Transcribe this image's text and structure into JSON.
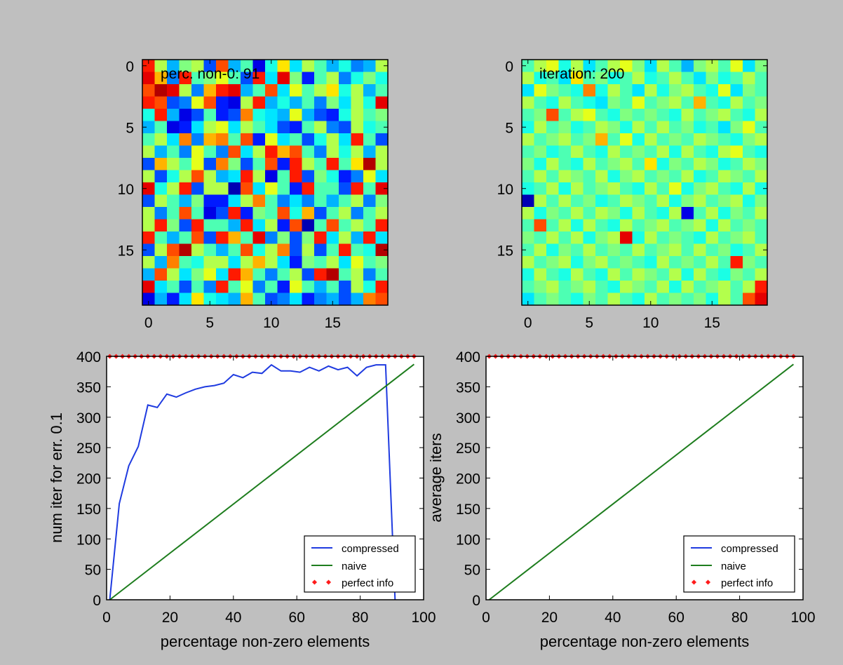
{
  "figure": {
    "background": "#bfbfbf",
    "colormap": "jet"
  },
  "chart_data": [
    {
      "id": "heatmap-left",
      "type": "heatmap",
      "annotation": "perc. non-0: 91",
      "rows": 20,
      "cols": 20,
      "xticks": [
        0,
        5,
        10,
        15
      ],
      "yticks": [
        0,
        5,
        10,
        15
      ],
      "value_range": [
        0,
        1
      ],
      "cells": [
        [
          0.85,
          0.55,
          0.3,
          0.5,
          0.55,
          0.2,
          0.8,
          0.3,
          0.45,
          0.1,
          0.4,
          0.65,
          0.35,
          0.55,
          0.45,
          0.3,
          0.4,
          0.25,
          0.3,
          0.55
        ],
        [
          0.9,
          0.7,
          0.25,
          0.85,
          0.45,
          0.5,
          0.6,
          0.45,
          0.2,
          0.85,
          0.35,
          0.9,
          0.5,
          0.15,
          0.45,
          0.55,
          0.25,
          0.4,
          0.5,
          0.4
        ],
        [
          0.8,
          0.95,
          0.9,
          0.55,
          0.25,
          0.7,
          0.85,
          0.9,
          0.3,
          0.45,
          0.8,
          0.35,
          0.6,
          0.45,
          0.55,
          0.65,
          0.4,
          0.55,
          0.3,
          0.45
        ],
        [
          0.85,
          0.8,
          0.2,
          0.25,
          0.6,
          0.8,
          0.15,
          0.1,
          0.55,
          0.85,
          0.3,
          0.4,
          0.3,
          0.45,
          0.25,
          0.5,
          0.35,
          0.55,
          0.4,
          0.9
        ],
        [
          0.4,
          0.85,
          0.3,
          0.1,
          0.2,
          0.45,
          0.15,
          0.2,
          0.75,
          0.4,
          0.35,
          0.3,
          0.6,
          0.3,
          0.2,
          0.15,
          0.4,
          0.55,
          0.45,
          0.5
        ],
        [
          0.3,
          0.45,
          0.1,
          0.15,
          0.35,
          0.55,
          0.6,
          0.35,
          0.55,
          0.45,
          0.35,
          0.2,
          0.15,
          0.45,
          0.55,
          0.25,
          0.2,
          0.55,
          0.4,
          0.45
        ],
        [
          0.45,
          0.55,
          0.35,
          0.75,
          0.25,
          0.7,
          0.75,
          0.45,
          0.8,
          0.15,
          0.6,
          0.35,
          0.45,
          0.2,
          0.4,
          0.55,
          0.35,
          0.85,
          0.45,
          0.2
        ],
        [
          0.55,
          0.3,
          0.45,
          0.25,
          0.6,
          0.45,
          0.25,
          0.8,
          0.35,
          0.55,
          0.85,
          0.7,
          0.8,
          0.45,
          0.25,
          0.55,
          0.4,
          0.55,
          0.3,
          0.55
        ],
        [
          0.2,
          0.7,
          0.55,
          0.45,
          0.6,
          0.2,
          0.75,
          0.5,
          0.2,
          0.45,
          0.8,
          0.15,
          0.85,
          0.55,
          0.45,
          0.85,
          0.45,
          0.65,
          0.95,
          0.55
        ],
        [
          0.55,
          0.2,
          0.4,
          0.55,
          0.8,
          0.55,
          0.3,
          0.35,
          0.85,
          0.55,
          0.1,
          0.45,
          0.85,
          0.2,
          0.5,
          0.4,
          0.15,
          0.25,
          0.6,
          0.35
        ],
        [
          0.9,
          0.4,
          0.55,
          0.85,
          0.2,
          0.55,
          0.55,
          0.05,
          0.8,
          0.35,
          0.6,
          0.45,
          0.15,
          0.85,
          0.45,
          0.45,
          0.2,
          0.85,
          0.45,
          0.9
        ],
        [
          0.2,
          0.55,
          0.45,
          0.3,
          0.5,
          0.15,
          0.15,
          0.35,
          0.55,
          0.75,
          0.45,
          0.25,
          0.35,
          0.25,
          0.45,
          0.3,
          0.45,
          0.55,
          0.25,
          0.5
        ],
        [
          0.55,
          0.25,
          0.45,
          0.8,
          0.45,
          0.1,
          0.2,
          0.85,
          0.15,
          0.5,
          0.45,
          0.8,
          0.4,
          0.7,
          0.2,
          0.45,
          0.55,
          0.25,
          0.45,
          0.55
        ],
        [
          0.55,
          0.85,
          0.5,
          0.2,
          0.85,
          0.45,
          0.45,
          0.3,
          0.85,
          0.35,
          0.55,
          0.15,
          0.8,
          0.05,
          0.45,
          0.8,
          0.45,
          0.55,
          0.45,
          0.85
        ],
        [
          0.85,
          0.45,
          0.3,
          0.45,
          0.8,
          0.2,
          0.85,
          0.7,
          0.45,
          0.9,
          0.25,
          0.5,
          0.2,
          0.5,
          0.85,
          0.35,
          0.55,
          0.3,
          0.85,
          0.35
        ],
        [
          0.2,
          0.55,
          0.8,
          0.95,
          0.55,
          0.45,
          0.3,
          0.45,
          0.8,
          0.4,
          0.55,
          0.75,
          0.2,
          0.55,
          0.2,
          0.45,
          0.85,
          0.45,
          0.4,
          0.95
        ],
        [
          0.55,
          0.3,
          0.75,
          0.45,
          0.4,
          0.55,
          0.55,
          0.35,
          0.55,
          0.7,
          0.55,
          0.35,
          0.15,
          0.5,
          0.45,
          0.55,
          0.35,
          0.6,
          0.45,
          0.5
        ],
        [
          0.3,
          0.8,
          0.55,
          0.35,
          0.5,
          0.6,
          0.35,
          0.85,
          0.7,
          0.45,
          0.25,
          0.45,
          0.55,
          0.2,
          0.85,
          0.95,
          0.45,
          0.55,
          0.25,
          0.45
        ],
        [
          0.9,
          0.35,
          0.45,
          0.2,
          0.45,
          0.25,
          0.85,
          0.45,
          0.6,
          0.25,
          0.45,
          0.15,
          0.6,
          0.45,
          0.3,
          0.45,
          0.2,
          0.55,
          0.4,
          0.85
        ],
        [
          0.1,
          0.3,
          0.15,
          0.35,
          0.65,
          0.4,
          0.35,
          0.3,
          0.7,
          0.45,
          0.2,
          0.25,
          0.35,
          0.15,
          0.25,
          0.3,
          0.2,
          0.3,
          0.75,
          0.8
        ]
      ]
    },
    {
      "id": "heatmap-right",
      "type": "heatmap",
      "annotation": "iteration: 200",
      "rows": 20,
      "cols": 20,
      "xticks": [
        0,
        5,
        10,
        15
      ],
      "yticks": [
        0,
        5,
        10,
        15
      ],
      "value_range": [
        0,
        1
      ],
      "cells": [
        [
          0.45,
          0.55,
          0.6,
          0.4,
          0.55,
          0.35,
          0.45,
          0.55,
          0.6,
          0.5,
          0.35,
          0.55,
          0.45,
          0.3,
          0.5,
          0.55,
          0.45,
          0.6,
          0.35,
          0.5
        ],
        [
          0.55,
          0.4,
          0.45,
          0.35,
          0.65,
          0.45,
          0.5,
          0.4,
          0.45,
          0.55,
          0.4,
          0.45,
          0.55,
          0.45,
          0.35,
          0.5,
          0.4,
          0.45,
          0.55,
          0.45
        ],
        [
          0.35,
          0.6,
          0.5,
          0.45,
          0.4,
          0.75,
          0.4,
          0.55,
          0.45,
          0.35,
          0.55,
          0.4,
          0.5,
          0.55,
          0.45,
          0.4,
          0.6,
          0.35,
          0.5,
          0.45
        ],
        [
          0.55,
          0.45,
          0.4,
          0.55,
          0.45,
          0.4,
          0.35,
          0.5,
          0.45,
          0.6,
          0.45,
          0.5,
          0.55,
          0.45,
          0.7,
          0.45,
          0.4,
          0.55,
          0.45,
          0.5
        ],
        [
          0.45,
          0.5,
          0.8,
          0.45,
          0.55,
          0.6,
          0.45,
          0.4,
          0.5,
          0.45,
          0.5,
          0.45,
          0.4,
          0.55,
          0.45,
          0.5,
          0.55,
          0.45,
          0.4,
          0.55
        ],
        [
          0.4,
          0.55,
          0.45,
          0.5,
          0.4,
          0.45,
          0.55,
          0.5,
          0.4,
          0.55,
          0.45,
          0.55,
          0.45,
          0.5,
          0.4,
          0.45,
          0.35,
          0.5,
          0.6,
          0.45
        ],
        [
          0.55,
          0.45,
          0.5,
          0.55,
          0.45,
          0.5,
          0.7,
          0.45,
          0.6,
          0.4,
          0.55,
          0.45,
          0.5,
          0.45,
          0.55,
          0.5,
          0.45,
          0.4,
          0.5,
          0.55
        ],
        [
          0.45,
          0.5,
          0.4,
          0.45,
          0.55,
          0.45,
          0.4,
          0.55,
          0.45,
          0.5,
          0.45,
          0.55,
          0.4,
          0.55,
          0.45,
          0.4,
          0.55,
          0.6,
          0.45,
          0.4
        ],
        [
          0.5,
          0.4,
          0.55,
          0.45,
          0.4,
          0.55,
          0.45,
          0.5,
          0.55,
          0.45,
          0.65,
          0.4,
          0.5,
          0.45,
          0.55,
          0.5,
          0.4,
          0.45,
          0.55,
          0.5
        ],
        [
          0.45,
          0.55,
          0.45,
          0.55,
          0.5,
          0.45,
          0.55,
          0.4,
          0.5,
          0.55,
          0.45,
          0.5,
          0.45,
          0.55,
          0.4,
          0.45,
          0.55,
          0.5,
          0.45,
          0.55
        ],
        [
          0.4,
          0.45,
          0.55,
          0.4,
          0.55,
          0.45,
          0.5,
          0.55,
          0.45,
          0.4,
          0.55,
          0.45,
          0.6,
          0.4,
          0.5,
          0.55,
          0.45,
          0.4,
          0.55,
          0.4
        ],
        [
          0.05,
          0.55,
          0.45,
          0.55,
          0.45,
          0.5,
          0.4,
          0.45,
          0.55,
          0.5,
          0.45,
          0.55,
          0.4,
          0.5,
          0.55,
          0.45,
          0.5,
          0.55,
          0.4,
          0.5
        ],
        [
          0.55,
          0.4,
          0.5,
          0.45,
          0.55,
          0.45,
          0.55,
          0.5,
          0.4,
          0.55,
          0.45,
          0.4,
          0.55,
          0.1,
          0.45,
          0.55,
          0.4,
          0.5,
          0.45,
          0.55
        ],
        [
          0.45,
          0.8,
          0.45,
          0.55,
          0.4,
          0.55,
          0.45,
          0.4,
          0.55,
          0.45,
          0.5,
          0.55,
          0.45,
          0.5,
          0.55,
          0.4,
          0.55,
          0.45,
          0.5,
          0.45
        ],
        [
          0.5,
          0.45,
          0.55,
          0.45,
          0.55,
          0.4,
          0.5,
          0.55,
          0.9,
          0.4,
          0.55,
          0.45,
          0.5,
          0.45,
          0.4,
          0.55,
          0.45,
          0.5,
          0.55,
          0.45
        ],
        [
          0.45,
          0.55,
          0.4,
          0.5,
          0.45,
          0.55,
          0.45,
          0.5,
          0.45,
          0.55,
          0.45,
          0.5,
          0.55,
          0.45,
          0.55,
          0.45,
          0.5,
          0.4,
          0.45,
          0.55
        ],
        [
          0.55,
          0.45,
          0.5,
          0.55,
          0.4,
          0.5,
          0.55,
          0.45,
          0.5,
          0.45,
          0.4,
          0.55,
          0.45,
          0.5,
          0.45,
          0.55,
          0.45,
          0.85,
          0.5,
          0.45
        ],
        [
          0.4,
          0.55,
          0.45,
          0.4,
          0.55,
          0.45,
          0.4,
          0.55,
          0.45,
          0.55,
          0.5,
          0.45,
          0.55,
          0.4,
          0.55,
          0.45,
          0.4,
          0.5,
          0.45,
          0.55
        ],
        [
          0.45,
          0.5,
          0.55,
          0.45,
          0.5,
          0.55,
          0.45,
          0.4,
          0.55,
          0.5,
          0.45,
          0.55,
          0.4,
          0.55,
          0.45,
          0.5,
          0.55,
          0.45,
          0.55,
          0.85
        ],
        [
          0.35,
          0.45,
          0.5,
          0.45,
          0.4,
          0.5,
          0.45,
          0.55,
          0.45,
          0.4,
          0.55,
          0.45,
          0.5,
          0.45,
          0.5,
          0.4,
          0.55,
          0.45,
          0.8,
          0.9
        ]
      ]
    },
    {
      "id": "line-left",
      "type": "line",
      "xlabel": "percentage non-zero elements",
      "ylabel": "num iter for err. 0.1",
      "xlim": [
        0,
        100
      ],
      "ylim": [
        0,
        400
      ],
      "xticks": [
        0,
        20,
        40,
        60,
        80,
        100
      ],
      "yticks": [
        0,
        50,
        100,
        150,
        200,
        250,
        300,
        350,
        400
      ],
      "legend": {
        "position": "lower-right"
      },
      "series": [
        {
          "name": "compressed",
          "style": "line",
          "color": "#1f3be0",
          "x": [
            1,
            4,
            7,
            10,
            13,
            16,
            19,
            22,
            25,
            28,
            31,
            34,
            37,
            40,
            43,
            46,
            49,
            52,
            55,
            58,
            61,
            64,
            67,
            70,
            73,
            76,
            79,
            82,
            85,
            88,
            91
          ],
          "y": [
            0,
            158,
            220,
            252,
            320,
            316,
            338,
            333,
            340,
            346,
            350,
            352,
            356,
            370,
            365,
            374,
            372,
            386,
            376,
            376,
            374,
            382,
            376,
            384,
            378,
            382,
            368,
            382,
            386,
            386,
            0
          ]
        },
        {
          "name": "naive",
          "style": "line",
          "color": "#1e7d1e",
          "x": [
            1,
            97
          ],
          "y": [
            0,
            387
          ]
        },
        {
          "name": "perfect info",
          "style": "markers",
          "color": "#ff1a1a",
          "x": [
            1,
            3,
            5,
            7,
            9,
            11,
            13,
            15,
            17,
            19,
            21,
            23,
            25,
            27,
            29,
            31,
            33,
            35,
            37,
            39,
            41,
            43,
            45,
            47,
            49,
            51,
            53,
            55,
            57,
            59,
            61,
            63,
            65,
            67,
            69,
            71,
            73,
            75,
            77,
            79,
            81,
            83,
            85,
            87,
            89,
            91,
            93,
            95,
            97
          ],
          "y": 400
        }
      ]
    },
    {
      "id": "line-right",
      "type": "line",
      "xlabel": "percentage non-zero elements",
      "ylabel": "average iters",
      "xlim": [
        0,
        100
      ],
      "ylim": [
        0,
        400
      ],
      "xticks": [
        0,
        20,
        40,
        60,
        80,
        100
      ],
      "yticks": [
        0,
        50,
        100,
        150,
        200,
        250,
        300,
        350,
        400
      ],
      "legend": {
        "position": "lower-right"
      },
      "series": [
        {
          "name": "compressed",
          "style": "line",
          "color": "#1f3be0",
          "x": [],
          "y": []
        },
        {
          "name": "naive",
          "style": "line",
          "color": "#1e7d1e",
          "x": [
            1,
            97
          ],
          "y": [
            0,
            387
          ]
        },
        {
          "name": "perfect info",
          "style": "markers",
          "color": "#ff1a1a",
          "x": [
            1,
            3,
            5,
            7,
            9,
            11,
            13,
            15,
            17,
            19,
            21,
            23,
            25,
            27,
            29,
            31,
            33,
            35,
            37,
            39,
            41,
            43,
            45,
            47,
            49,
            51,
            53,
            55,
            57,
            59,
            61,
            63,
            65,
            67,
            69,
            71,
            73,
            75,
            77,
            79,
            81,
            83,
            85,
            87,
            89,
            91,
            93,
            95,
            97
          ],
          "y": 400
        }
      ]
    }
  ]
}
